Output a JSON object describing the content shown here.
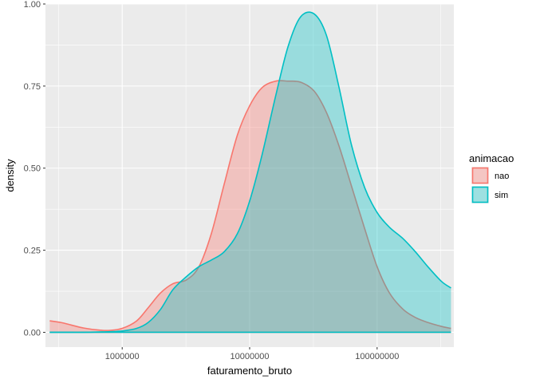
{
  "chart_data": {
    "type": "area",
    "subtype": "density",
    "xlabel": "faturamento_bruto",
    "ylabel": "density",
    "x_scale": "log10",
    "xlim": [
      250000,
      400000000
    ],
    "ylim": [
      -0.045,
      1.0
    ],
    "x_ticks": [
      1000000,
      10000000,
      100000000
    ],
    "x_tick_labels": [
      "1000000",
      "10000000",
      "100000000"
    ],
    "y_ticks": [
      0,
      0.25,
      0.5,
      0.75,
      1.0
    ],
    "y_tick_labels": [
      "0.00",
      "0.25",
      "0.50",
      "0.75",
      "1.00"
    ],
    "grid": true,
    "legend": {
      "title": "animacao",
      "position": "right"
    },
    "series": [
      {
        "name": "nao",
        "color": "#F8766D",
        "fill": "#F8766D",
        "fill_opacity": 0.35,
        "x": [
          270000,
          330000,
          400000,
          500000,
          650000,
          800000,
          1000000,
          1300000,
          1600000,
          2000000,
          2500000,
          3200000,
          4000000,
          5000000,
          6300000,
          8000000,
          10000000,
          12500000,
          16000000,
          20000000,
          25000000,
          32000000,
          40000000,
          50000000,
          63000000,
          80000000,
          100000000,
          125000000,
          160000000,
          200000000,
          250000000,
          320000000,
          380000000
        ],
        "y": [
          0.035,
          0.03,
          0.022,
          0.013,
          0.007,
          0.006,
          0.012,
          0.035,
          0.075,
          0.12,
          0.148,
          0.16,
          0.2,
          0.3,
          0.45,
          0.6,
          0.69,
          0.745,
          0.765,
          0.765,
          0.762,
          0.735,
          0.67,
          0.57,
          0.445,
          0.315,
          0.2,
          0.12,
          0.07,
          0.045,
          0.03,
          0.018,
          0.012
        ]
      },
      {
        "name": "sim",
        "color": "#00BFC4",
        "fill": "#00BFC4",
        "fill_opacity": 0.35,
        "x": [
          270000,
          330000,
          400000,
          500000,
          650000,
          800000,
          1000000,
          1300000,
          1600000,
          2000000,
          2500000,
          3200000,
          4000000,
          5000000,
          6300000,
          8000000,
          10000000,
          12500000,
          16000000,
          20000000,
          25000000,
          32000000,
          40000000,
          50000000,
          63000000,
          80000000,
          100000000,
          125000000,
          160000000,
          200000000,
          250000000,
          320000000,
          380000000
        ],
        "y": [
          0.0,
          0.0,
          0.0,
          0.0,
          0.001,
          0.002,
          0.004,
          0.012,
          0.03,
          0.07,
          0.13,
          0.17,
          0.2,
          0.22,
          0.245,
          0.3,
          0.4,
          0.54,
          0.72,
          0.87,
          0.96,
          0.97,
          0.905,
          0.75,
          0.57,
          0.44,
          0.365,
          0.32,
          0.285,
          0.245,
          0.2,
          0.155,
          0.135
        ]
      }
    ]
  }
}
